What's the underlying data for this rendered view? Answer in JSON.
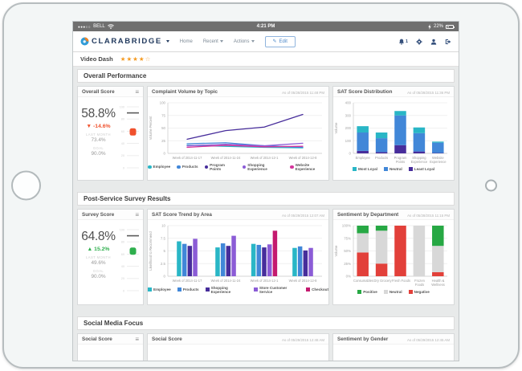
{
  "status_bar": {
    "signal_dots": "●●●○○",
    "carrier": "BELL",
    "time": "4:21 PM",
    "battery": "22%"
  },
  "navbar": {
    "brand": "CLARABRIDGE",
    "menu": [
      {
        "label": "Home"
      },
      {
        "label": "Recent"
      },
      {
        "label": "Actions"
      }
    ],
    "edit_label": "Edit",
    "notification_count": "1"
  },
  "icons": {
    "pencil": "✎",
    "menu": "≡"
  },
  "page_header": {
    "title": "Video Dash",
    "stars_filled": "★★★★",
    "stars_empty": "☆"
  },
  "sections": {
    "s1": "Overall Performance",
    "s2": "Post-Service Survey Results",
    "s3": "Social Media Focus"
  },
  "overall_score": {
    "title": "Overall Score",
    "value": "58.8%",
    "delta_arrow": "▼",
    "delta": "-14.6%",
    "last_month_label": "LAST MONTH",
    "last_month_value": "73.4%",
    "goal_label": "GOAL",
    "goal_value": "90.0%",
    "gauge": {
      "ticks": [
        100,
        80,
        60,
        40,
        20,
        0
      ],
      "goal": 90,
      "value": 58.8,
      "color": "#f0512d"
    }
  },
  "survey_score": {
    "title": "Survey Score",
    "value": "64.8%",
    "delta_arrow": "▲",
    "delta": "15.2%",
    "last_month_label": "LAST MONTH",
    "last_month_value": "49.6%",
    "goal_label": "GOAL",
    "goal_value": "90.0%",
    "gauge": {
      "ticks": [
        100,
        80,
        60,
        40,
        20,
        0
      ],
      "goal": 90,
      "value": 64.8,
      "color": "#2eaf4d"
    }
  },
  "social": {
    "kpi_title": "Social Score",
    "chart1_title": "Social Score",
    "chart1_as_of": "As of 05/29/2015 12:48 AM",
    "chart2_title": "Sentiment by Gender",
    "chart2_as_of": "As of 05/29/2015 12:45 AM"
  },
  "chart_data": [
    {
      "type": "line",
      "title": "Complaint Volume by Topic",
      "as_of": "As of 05/28/2015 11:48 PM",
      "ylabel": "Volume Percent",
      "ylim": [
        0,
        100
      ],
      "yticks": [
        0,
        25,
        50,
        75,
        100
      ],
      "x": [
        "Week of 2014-11-17",
        "Week of 2014-11-24",
        "Week of 2014-12-1",
        "Week of 2014-12-8"
      ],
      "series": [
        {
          "name": "Employee",
          "color": "#29b6c6",
          "values": [
            16,
            14,
            12,
            11
          ]
        },
        {
          "name": "Products",
          "color": "#4187d8",
          "values": [
            19,
            21,
            15,
            12
          ]
        },
        {
          "name": "Program Points",
          "color": "#472d9b",
          "values": [
            28,
            45,
            52,
            77
          ]
        },
        {
          "name": "Shopping Experience",
          "color": "#8b5cd6",
          "values": [
            15,
            18,
            15,
            20
          ]
        },
        {
          "name": "Website Experience",
          "color": "#d4359c",
          "values": [
            12,
            16,
            13,
            14
          ]
        }
      ],
      "grid": true,
      "legend_position": "bottom",
      "wrap_x": false
    },
    {
      "type": "stacked-bar",
      "title": "SAT Score Distribution",
      "as_of": "As of 05/28/2015 11:36 PM",
      "ylabel": "Volume",
      "ylim": [
        0,
        400
      ],
      "yticks": [
        0,
        100,
        200,
        300,
        400
      ],
      "categories": [
        "Employee",
        "Products",
        "Program Points",
        "Shopping Experience",
        "Website Experience"
      ],
      "series": [
        {
          "name": "Least Loyal",
          "color": "#472d9b",
          "values": [
            20,
            10,
            65,
            15,
            3
          ]
        },
        {
          "name": "Neutral",
          "color": "#4187d8",
          "values": [
            145,
            110,
            235,
            145,
            82
          ]
        },
        {
          "name": "Most Loyal",
          "color": "#29b6c6",
          "values": [
            50,
            45,
            35,
            45,
            8
          ]
        }
      ],
      "legend": [
        "Most Loyal",
        "Neutral",
        "Least Loyal"
      ],
      "grid": true,
      "legend_position": "bottom",
      "wrap_x": true
    },
    {
      "type": "grouped-bar",
      "title": "SAT Score Trend by Area",
      "as_of": "As of 05/29/2015 12:07 AM",
      "ylabel": "Likelihood to Recommend",
      "ylim": [
        0,
        10
      ],
      "yticks": [
        0,
        2.5,
        5,
        7.5,
        10
      ],
      "categories": [
        "Week of 2014-11-17",
        "Week of 2014-11-24",
        "Week of 2014-12-1",
        "Week of 2014-12-8"
      ],
      "series": [
        {
          "name": "Employee",
          "color": "#29b6c6",
          "values": [
            6.9,
            5.7,
            6.4,
            5.6
          ]
        },
        {
          "name": "Products",
          "color": "#4187d8",
          "values": [
            6.4,
            6.5,
            6.2,
            5.9
          ]
        },
        {
          "name": "Shopping Experience",
          "color": "#472d9b",
          "values": [
            6.0,
            6.0,
            5.7,
            5.1
          ]
        },
        {
          "name": "Store Customer Service",
          "color": "#8b5cd6",
          "values": [
            7.4,
            8.0,
            6.3,
            5.6
          ]
        },
        {
          "name": "Checkout",
          "color": "#c41a6f",
          "values": [
            null,
            null,
            9.0,
            null
          ]
        }
      ],
      "grid": true,
      "legend_position": "bottom",
      "wrap_x": false
    },
    {
      "type": "stacked-bar",
      "title": "Sentiment by Department",
      "as_of": "As of 05/28/2015 11:15 PM",
      "ylabel": "Volume",
      "ylim": [
        0,
        100
      ],
      "yticks": [
        0,
        25,
        50,
        75,
        100
      ],
      "ytick_suffix": "%",
      "categories": [
        "Consumables",
        "Dry Grocery",
        "Fresh Foods",
        "Frozen Foods",
        "Health & Wellness"
      ],
      "series": [
        {
          "name": "Negative",
          "color": "#e2403a",
          "values": [
            47,
            25,
            100,
            0,
            8
          ]
        },
        {
          "name": "Neutral",
          "color": "#d8d8d8",
          "values": [
            38,
            65,
            0,
            100,
            52
          ]
        },
        {
          "name": "Positive",
          "color": "#27a844",
          "values": [
            15,
            10,
            0,
            0,
            40
          ]
        }
      ],
      "legend": [
        "Positive",
        "Neutral",
        "Negative"
      ],
      "grid": true,
      "legend_position": "bottom",
      "wrap_x": true
    }
  ]
}
